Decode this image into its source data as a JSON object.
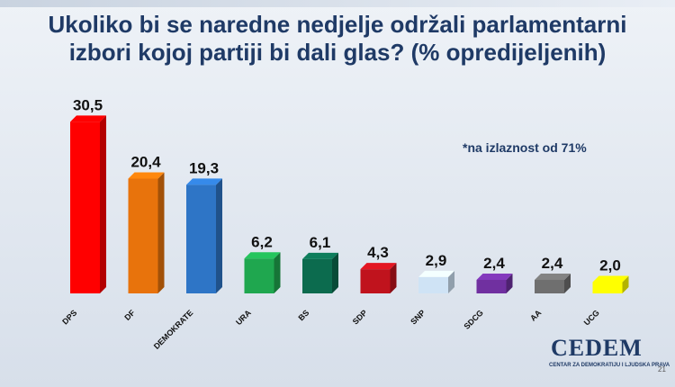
{
  "title": "Ukoliko bi se naredne nedjelje održali parlamentarni izbori kojoj partiji bi dali glas? (% opredijeljenih)",
  "note": "*na izlaznost od 71%",
  "logo": {
    "text": "CEDEM",
    "subtitle": "CENTAR ZA DEMOKRATIJU I LJUDSKA PRAVA"
  },
  "page_number": "21",
  "colors": {
    "DPS": "#ff0000",
    "DF": "#e8730c",
    "DEMOKRATE": "#2e75c6",
    "URA": "#1fa74f",
    "BS": "#0c6b4e",
    "SDP": "#c0131d",
    "SNP": "#cfe3f5",
    "SDCG": "#7030a0",
    "AA": "#6f6f6f",
    "UCG": "#ffff00"
  },
  "chart_data": {
    "type": "bar",
    "categories": [
      "DPS",
      "DF",
      "DEMOKRATE",
      "URA",
      "BS",
      "SDP",
      "SNP",
      "SDCG",
      "AA",
      "UCG"
    ],
    "values": [
      30.5,
      20.4,
      19.3,
      6.2,
      6.1,
      4.3,
      2.9,
      2.4,
      2.4,
      2.0
    ],
    "value_labels": [
      "30,5",
      "20,4",
      "19,3",
      "6,2",
      "6,1",
      "4,3",
      "2,9",
      "2,4",
      "2,4",
      "2,0"
    ],
    "title": "Ukoliko bi se naredne nedjelje održali parlamentarni izbori kojoj partiji bi dali glas? (% opredijeljenih)",
    "xlabel": "",
    "ylabel": "",
    "ylim": [
      0,
      32
    ],
    "grid": false,
    "legend": "none"
  }
}
